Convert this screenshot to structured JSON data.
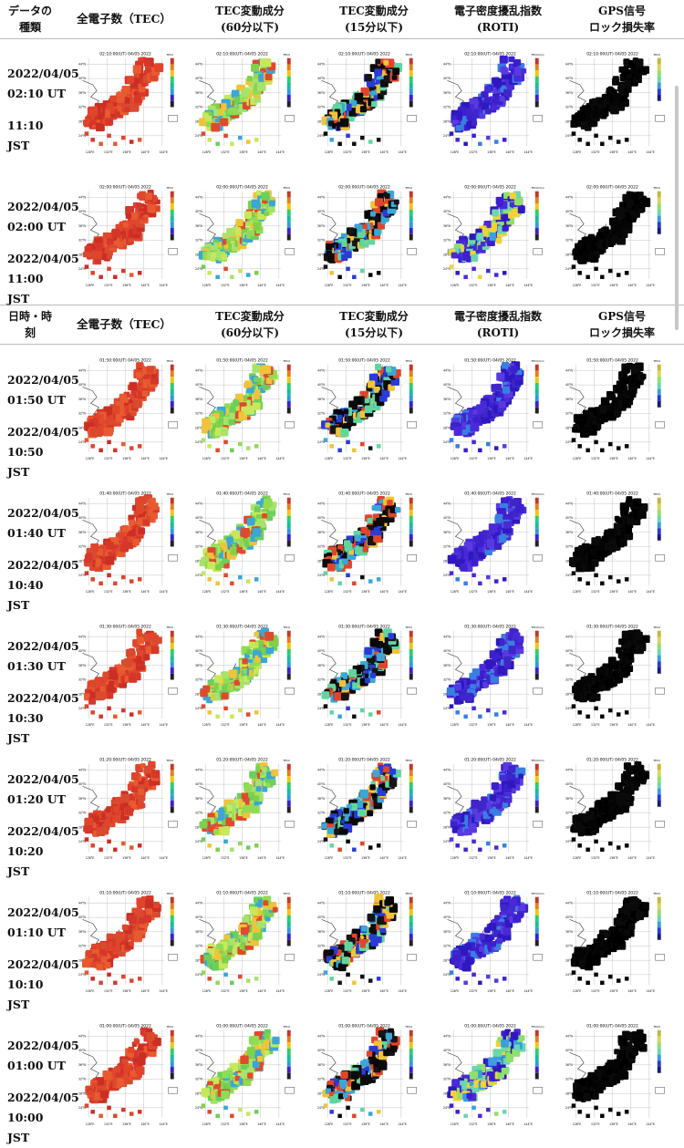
{
  "header_top": {
    "row_label": [
      "データの",
      "種類"
    ],
    "tec": "全電子数（TEC）",
    "tec60": [
      "TEC変動成分",
      "(60分以下)"
    ],
    "tec15": [
      "TEC変動成分",
      "(15分以下)"
    ],
    "roti": [
      "電子密度擾乱指数",
      "(ROTI)"
    ],
    "lol": [
      "GPS信号",
      "ロック損失率"
    ]
  },
  "header_mid": {
    "row_label": [
      "日時・時",
      "刻"
    ],
    "tec": "全電子数（TEC）",
    "tec60": [
      "TEC変動成分",
      "(60分以下)"
    ],
    "tec15": [
      "TEC変動成分",
      "(15分以下)"
    ],
    "roti": [
      "電子密度擾乱指数",
      "(ROTI)"
    ],
    "lol": [
      "GPS信号",
      "ロック損失率"
    ]
  },
  "map_text": {
    "lon_ticks": [
      "128°E",
      "132°E",
      "136°E",
      "140°E",
      "144°E"
    ],
    "lat_ticks": [
      "44°N",
      "40°N",
      "36°N",
      "32°N",
      "28°N",
      "24°N"
    ],
    "unit_tec": "TECU",
    "unit_roti": "TECU/min"
  },
  "colors": {
    "tec_red": "#d93a2b",
    "lol_black": "#050505",
    "roti_blue": "#3d1fd0",
    "tec60_green": "#8fdc54",
    "tec15_black": "#0a0a0a"
  },
  "rows": [
    {
      "time_label": "02:10:00(UT) 04/05 2022",
      "ut_date": "2022/04/05",
      "ut_time": "02:10 UT",
      "jst_date": "11:10",
      "jst_time": "JST",
      "panels": [
        "tec",
        "tec60",
        "tec15",
        "roti",
        "lol"
      ]
    },
    {
      "time_label": "02:00:00(UT) 04/05 2022",
      "ut_date": "2022/04/05",
      "ut_time": "02:00 UT",
      "jst_date": "2022/04/05",
      "jst_time": "11:00",
      "jst_suffix": "JST",
      "panels": [
        "tec",
        "tec60",
        "tec15",
        "roti_mixed",
        "lol"
      ]
    },
    {
      "time_label": "01:50:00(UT) 04/05 2022",
      "ut_date": "2022/04/05",
      "ut_time": "01:50 UT",
      "jst_date": "2022/04/05",
      "jst_time": "10:50",
      "jst_suffix": "JST",
      "panels": [
        "tec",
        "tec60",
        "tec15",
        "roti",
        "lol"
      ]
    },
    {
      "time_label": "01:40:00(UT) 04/05 2022",
      "ut_date": "2022/04/05",
      "ut_time": "01:40 UT",
      "jst_date": "2022/04/05",
      "jst_time": "10:40",
      "jst_suffix": "JST",
      "panels": [
        "tec",
        "tec60",
        "tec15",
        "roti",
        "lol"
      ]
    },
    {
      "time_label": "01:30:00(UT) 04/05 2022",
      "ut_date": "2022/04/05",
      "ut_time": "01:30 UT",
      "jst_date": "2022/04/05",
      "jst_time": "10:30",
      "jst_suffix": "JST",
      "panels": [
        "tec",
        "tec60",
        "tec15",
        "roti",
        "lol"
      ]
    },
    {
      "time_label": "01:20:00(UT) 04/05 2022",
      "ut_date": "2022/04/05",
      "ut_time": "01:20 UT",
      "jst_date": "2022/04/05",
      "jst_time": "10:20",
      "jst_suffix": "JST",
      "panels": [
        "tec",
        "tec60",
        "tec15",
        "roti",
        "lol"
      ]
    },
    {
      "time_label": "01:10:00(UT) 04/05 2022",
      "ut_date": "2022/04/05",
      "ut_time": "01:10 UT",
      "jst_date": "2022/04/05",
      "jst_time": "10:10",
      "jst_suffix": "JST",
      "panels": [
        "tec",
        "tec60",
        "tec15",
        "roti",
        "lol"
      ]
    },
    {
      "time_label": "01:00:00(UT) 04/05 2022",
      "ut_date": "2022/04/05",
      "ut_time": "01:00 UT",
      "jst_date": "2022/04/05",
      "jst_time": "10:00",
      "jst_suffix": "JST",
      "panels": [
        "tec",
        "tec60",
        "tec15",
        "roti_mixed",
        "lol"
      ]
    }
  ]
}
